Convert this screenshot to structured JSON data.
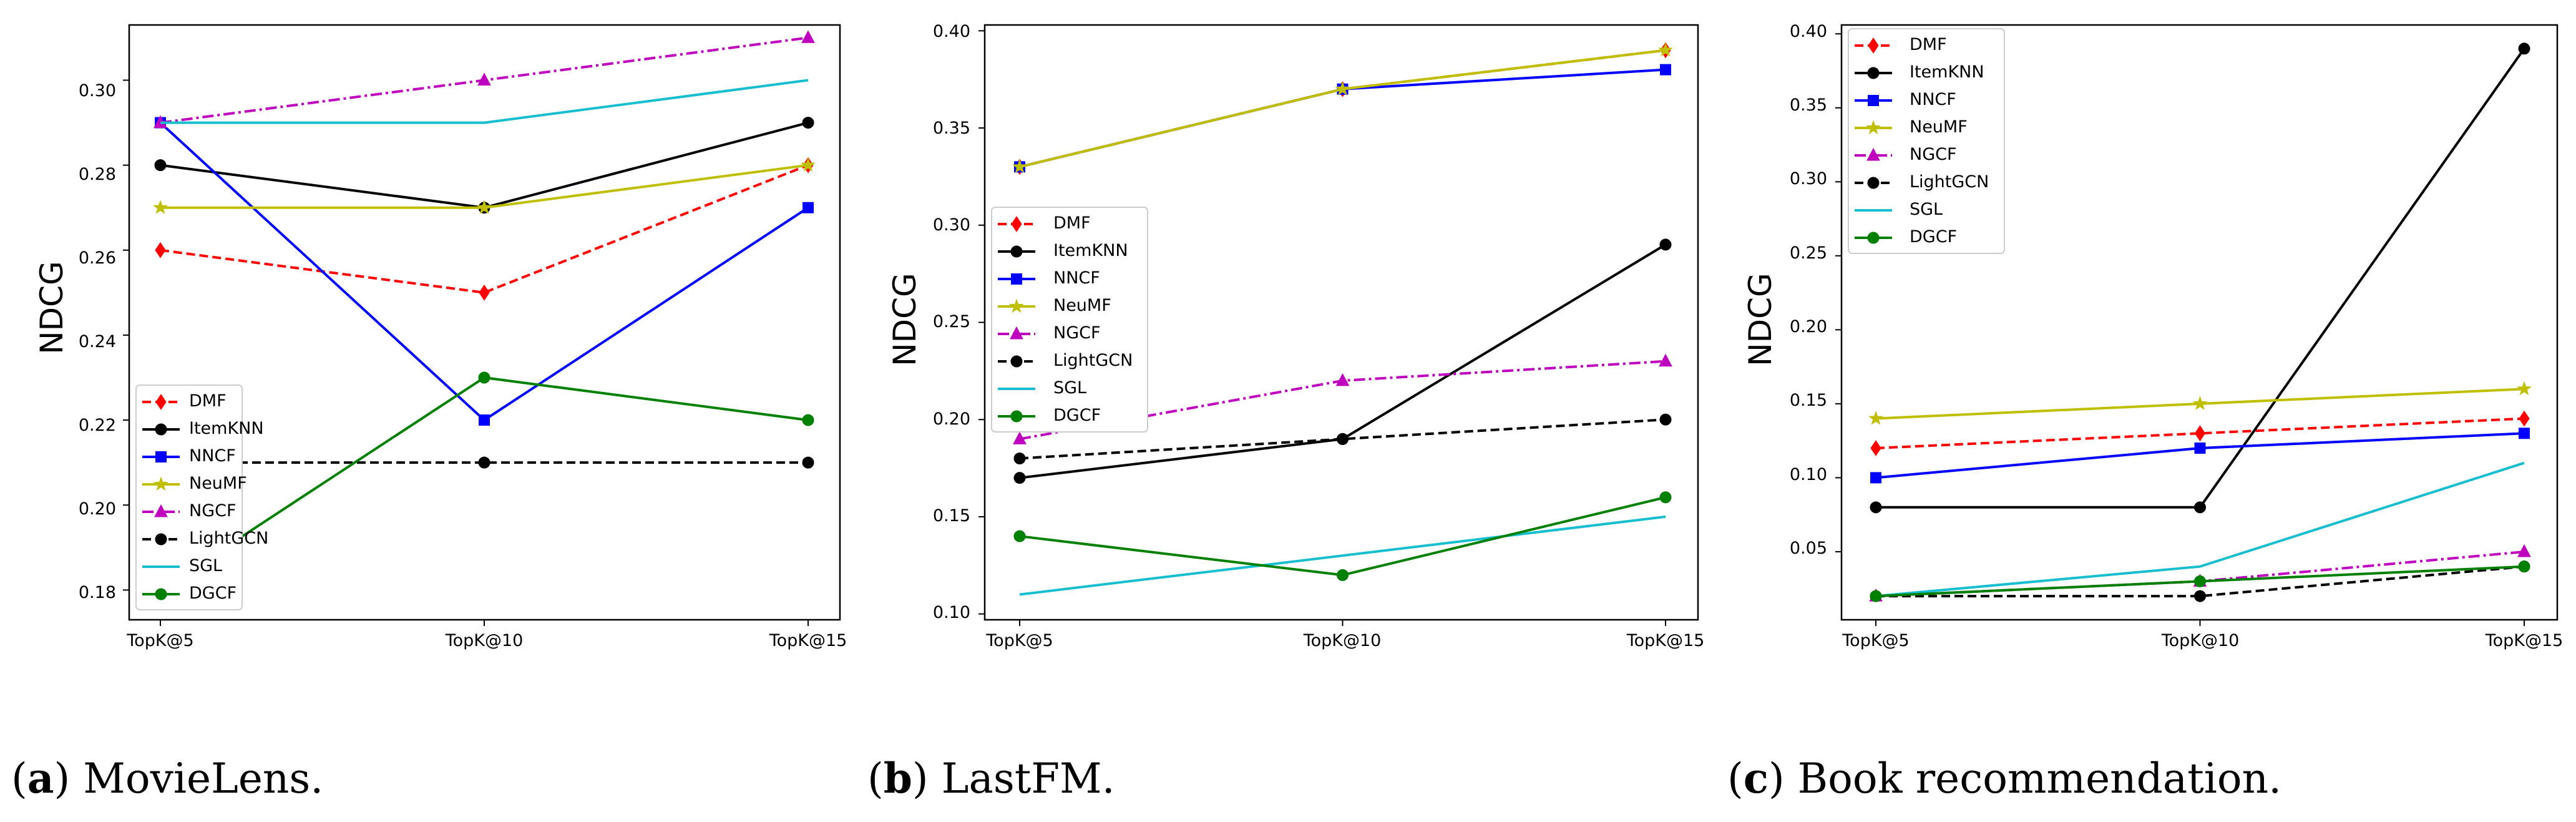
{
  "figure": {
    "marker_styles": {
      "DMF": {
        "color": "#ff0000",
        "dash": "dashed",
        "marker": "diamond"
      },
      "ItemKNN": {
        "color": "#000000",
        "dash": "solid",
        "marker": "circle"
      },
      "NNCF": {
        "color": "#0000ff",
        "dash": "solid",
        "marker": "square"
      },
      "NeuMF": {
        "color": "#bfbf00",
        "dash": "solid",
        "marker": "star"
      },
      "NGCF": {
        "color": "#bf00bf",
        "dash": "dashdot",
        "marker": "triangle"
      },
      "LightGCN": {
        "color": "#000000",
        "dash": "dashed",
        "marker": "circle"
      },
      "SGL": {
        "color": "#17becf",
        "dash": "solid",
        "marker": "none"
      },
      "DGCF": {
        "color": "#008000",
        "dash": "solid",
        "marker": "circle"
      }
    }
  },
  "chart_data": [
    {
      "type": "line",
      "caption_label": "a",
      "caption_text": "MovieLens.",
      "categories": [
        "TopK@5",
        "TopK@10",
        "TopK@15"
      ],
      "ylabel": "NDCG",
      "ylim": [
        0.173,
        0.313
      ],
      "yticks": [
        "0.18",
        "0.20",
        "0.22",
        "0.24",
        "0.26",
        "0.28",
        "0.30"
      ],
      "legend_position": "lower-left",
      "series": [
        {
          "name": "DMF",
          "values": [
            0.26,
            0.25,
            0.28
          ]
        },
        {
          "name": "ItemKNN",
          "values": [
            0.28,
            0.27,
            0.29
          ]
        },
        {
          "name": "NNCF",
          "values": [
            0.29,
            0.22,
            0.27
          ]
        },
        {
          "name": "NeuMF",
          "values": [
            0.27,
            0.27,
            0.28
          ]
        },
        {
          "name": "NGCF",
          "values": [
            0.29,
            0.3,
            0.31
          ]
        },
        {
          "name": "LightGCN",
          "values": [
            0.21,
            0.21,
            0.21
          ]
        },
        {
          "name": "SGL",
          "values": [
            0.29,
            0.29,
            0.3
          ]
        },
        {
          "name": "DGCF",
          "values": [
            0.18,
            0.23,
            0.22
          ]
        }
      ]
    },
    {
      "type": "line",
      "caption_label": "b",
      "caption_text": "LastFM.",
      "categories": [
        "TopK@5",
        "TopK@10",
        "TopK@15"
      ],
      "ylabel": "NDCG",
      "ylim": [
        0.097,
        0.403
      ],
      "yticks": [
        "0.10",
        "0.15",
        "0.20",
        "0.25",
        "0.30",
        "0.35",
        "0.40"
      ],
      "legend_position": "center-left",
      "series": [
        {
          "name": "DMF",
          "values": [
            0.33,
            0.37,
            0.39
          ]
        },
        {
          "name": "ItemKNN",
          "values": [
            0.17,
            0.19,
            0.29
          ]
        },
        {
          "name": "NNCF",
          "values": [
            0.33,
            0.37,
            0.38
          ]
        },
        {
          "name": "NeuMF",
          "values": [
            0.33,
            0.37,
            0.39
          ]
        },
        {
          "name": "NGCF",
          "values": [
            0.19,
            0.22,
            0.23
          ]
        },
        {
          "name": "LightGCN",
          "values": [
            0.18,
            0.19,
            0.2
          ]
        },
        {
          "name": "SGL",
          "values": [
            0.11,
            0.13,
            0.15
          ]
        },
        {
          "name": "DGCF",
          "values": [
            0.14,
            0.12,
            0.16
          ]
        }
      ]
    },
    {
      "type": "line",
      "caption_label": "c",
      "caption_text": "Book recommendation.",
      "categories": [
        "TopK@5",
        "TopK@10",
        "TopK@15"
      ],
      "ylabel": "NDCG",
      "ylim": [
        0.004,
        0.406
      ],
      "yticks": [
        "0.05",
        "0.10",
        "0.15",
        "0.20",
        "0.25",
        "0.30",
        "0.35",
        "0.40"
      ],
      "legend_position": "upper-left",
      "series": [
        {
          "name": "DMF",
          "values": [
            0.12,
            0.13,
            0.14
          ]
        },
        {
          "name": "ItemKNN",
          "values": [
            0.08,
            0.08,
            0.39
          ]
        },
        {
          "name": "NNCF",
          "values": [
            0.1,
            0.12,
            0.13
          ]
        },
        {
          "name": "NeuMF",
          "values": [
            0.14,
            0.15,
            0.16
          ]
        },
        {
          "name": "NGCF",
          "values": [
            0.02,
            0.03,
            0.05
          ]
        },
        {
          "name": "LightGCN",
          "values": [
            0.02,
            0.02,
            0.04
          ]
        },
        {
          "name": "SGL",
          "values": [
            0.02,
            0.04,
            0.11
          ]
        },
        {
          "name": "DGCF",
          "values": [
            0.02,
            0.03,
            0.04
          ]
        }
      ]
    }
  ]
}
